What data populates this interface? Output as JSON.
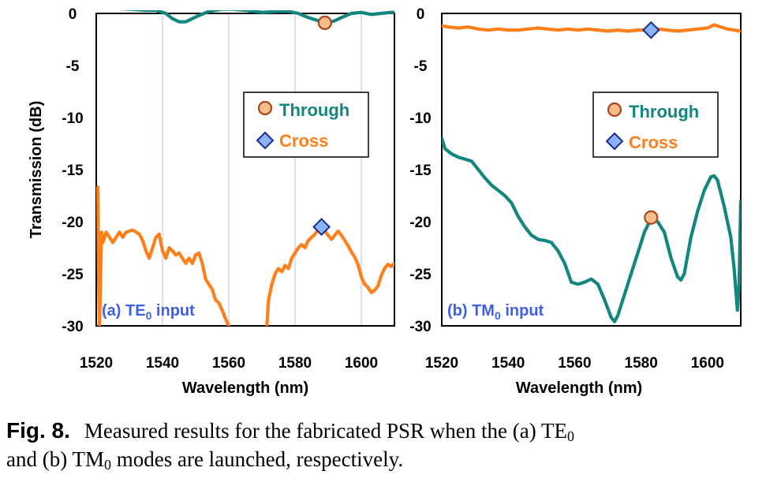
{
  "caption": {
    "label": "Fig. 8.",
    "text_1": "Measured results for the fabricated PSR when the (a) TE",
    "sub_1": "0",
    "text_2": "and (b) TM",
    "sub_2": "0",
    "text_3": " modes are launched, respectively."
  },
  "colors": {
    "through": "#138680",
    "cross": "#ff7f1a",
    "grid": "#c9cdf2",
    "panel_label": "#3f5fe8"
  },
  "chart_data": [
    {
      "type": "line",
      "panel_label_prefix": "(a) TE",
      "panel_label_sub": "0",
      "panel_label_suffix": " input",
      "xlabel": "Wavelength (nm)",
      "ylabel": "Transmission (dB)",
      "xlim": [
        1520,
        1610
      ],
      "ylim": [
        -30,
        0
      ],
      "x_ticks": [
        "1520",
        "1540",
        "1560",
        "1580",
        "1600"
      ],
      "y_ticks": [
        "0",
        "-5",
        "-10",
        "-15",
        "-20",
        "-25",
        "-30"
      ],
      "grid": "vertical",
      "legend": {
        "position": "right-middle",
        "entries": [
          "Through",
          "Cross"
        ]
      },
      "series": [
        {
          "name": "Through",
          "marker": "circle",
          "marker_point": [
            1589,
            -0.9
          ],
          "points": [
            [
              1520,
              0.6
            ],
            [
              1525,
              0.5
            ],
            [
              1530,
              0.4
            ],
            [
              1535,
              0.3
            ],
            [
              1538,
              0.3
            ],
            [
              1541,
              0
            ],
            [
              1543,
              -0.5
            ],
            [
              1545,
              -0.8
            ],
            [
              1547,
              -0.8
            ],
            [
              1549,
              -0.5
            ],
            [
              1551,
              -0.2
            ],
            [
              1554,
              0.2
            ],
            [
              1558,
              0.4
            ],
            [
              1561,
              0.4
            ],
            [
              1565,
              0.3
            ],
            [
              1570,
              0.1
            ],
            [
              1575,
              0.2
            ],
            [
              1578,
              0.2
            ],
            [
              1581,
              0
            ],
            [
              1584,
              -0.4
            ],
            [
              1587,
              -0.7
            ],
            [
              1590,
              -0.9
            ],
            [
              1592,
              -0.7
            ],
            [
              1594,
              -0.4
            ],
            [
              1597,
              0
            ],
            [
              1600,
              0.1
            ],
            [
              1603,
              -0.1
            ],
            [
              1606,
              0
            ],
            [
              1609,
              0.1
            ],
            [
              1610,
              0.1
            ]
          ]
        },
        {
          "name": "Cross",
          "marker": "diamond",
          "marker_point": [
            1588,
            -20.5
          ],
          "segments": [
            [
              [
                1520.5,
                -16.7
              ],
              [
                1520.7,
                -25
              ],
              [
                1521,
                -30
              ],
              [
                1521.3,
                -25
              ],
              [
                1521.6,
                -21
              ],
              [
                1522,
                -22
              ],
              [
                1523,
                -21
              ],
              [
                1524,
                -21.5
              ],
              [
                1525,
                -22
              ],
              [
                1527,
                -21
              ],
              [
                1528,
                -21.5
              ],
              [
                1529,
                -21
              ],
              [
                1531,
                -20.8
              ],
              [
                1533,
                -21.2
              ],
              [
                1534,
                -21.8
              ],
              [
                1535,
                -22.8
              ],
              [
                1536,
                -23.5
              ],
              [
                1537,
                -22.5
              ],
              [
                1538,
                -21.5
              ],
              [
                1539,
                -21.2
              ],
              [
                1540,
                -22.8
              ],
              [
                1541,
                -23.5
              ],
              [
                1542,
                -22.5
              ],
              [
                1543,
                -22.8
              ],
              [
                1544,
                -23.2
              ],
              [
                1545,
                -23
              ],
              [
                1546,
                -23.5
              ],
              [
                1547,
                -24
              ],
              [
                1548,
                -23.5
              ],
              [
                1549,
                -24
              ],
              [
                1550,
                -23.2
              ],
              [
                1551,
                -23
              ],
              [
                1552,
                -24
              ],
              [
                1553,
                -25.5
              ],
              [
                1554,
                -26
              ],
              [
                1555,
                -26.5
              ],
              [
                1556,
                -27.5
              ],
              [
                1557,
                -27.8
              ],
              [
                1558,
                -28.5
              ],
              [
                1559,
                -29.3
              ],
              [
                1560,
                -30
              ]
            ],
            [
              [
                1571.5,
                -30
              ],
              [
                1572,
                -27.5
              ],
              [
                1573,
                -26
              ],
              [
                1574,
                -25
              ],
              [
                1575,
                -24.5
              ],
              [
                1576,
                -24.8
              ],
              [
                1577,
                -24.2
              ],
              [
                1578,
                -24.5
              ],
              [
                1579,
                -23.5
              ],
              [
                1580,
                -23
              ],
              [
                1581,
                -22.5
              ],
              [
                1582,
                -22.2
              ],
              [
                1583,
                -22.5
              ],
              [
                1584,
                -21.8
              ],
              [
                1585,
                -21.5
              ],
              [
                1586,
                -21.2
              ],
              [
                1587,
                -20.8
              ],
              [
                1588,
                -20.6
              ],
              [
                1589,
                -20.9
              ],
              [
                1590,
                -21.3
              ],
              [
                1591,
                -21.7
              ],
              [
                1592,
                -21.3
              ],
              [
                1593,
                -20.9
              ],
              [
                1594,
                -21.3
              ],
              [
                1595,
                -21.8
              ],
              [
                1596,
                -22.3
              ],
              [
                1597,
                -22.9
              ],
              [
                1598,
                -23.4
              ],
              [
                1599,
                -24.1
              ],
              [
                1600,
                -25.3
              ],
              [
                1601,
                -26
              ],
              [
                1602,
                -26.3
              ],
              [
                1603,
                -26.8
              ],
              [
                1604,
                -26.6
              ],
              [
                1605,
                -26.2
              ],
              [
                1606,
                -25.2
              ],
              [
                1607,
                -24.5
              ],
              [
                1608,
                -24.1
              ],
              [
                1609,
                -24.3
              ],
              [
                1610,
                -24
              ]
            ]
          ]
        }
      ]
    },
    {
      "type": "line",
      "panel_label_prefix": "(b) TM",
      "panel_label_sub": "0",
      "panel_label_suffix": " input",
      "xlabel": "Wavelength (nm)",
      "ylabel": "",
      "xlim": [
        1520,
        1610
      ],
      "ylim": [
        -30,
        0
      ],
      "x_ticks": [
        "1520",
        "1540",
        "1560",
        "1580",
        "1600"
      ],
      "y_ticks": [
        "0",
        "-5",
        "-10",
        "-15",
        "-20",
        "-25",
        "-30"
      ],
      "grid": "none",
      "legend": {
        "position": "right-middle",
        "entries": [
          "Through",
          "Cross"
        ]
      },
      "series": [
        {
          "name": "Through",
          "marker": "circle",
          "marker_point": [
            1583,
            -19.6
          ],
          "points": [
            [
              1520,
              -12
            ],
            [
              1521,
              -13
            ],
            [
              1523,
              -13.5
            ],
            [
              1525,
              -13.8
            ],
            [
              1527,
              -14
            ],
            [
              1529,
              -14.2
            ],
            [
              1531,
              -15
            ],
            [
              1533,
              -15.8
            ],
            [
              1535,
              -16.5
            ],
            [
              1537,
              -17
            ],
            [
              1539,
              -17.5
            ],
            [
              1541,
              -18.2
            ],
            [
              1543,
              -19.5
            ],
            [
              1545,
              -20.5
            ],
            [
              1547,
              -21.3
            ],
            [
              1549,
              -21.7
            ],
            [
              1551,
              -21.8
            ],
            [
              1553,
              -22
            ],
            [
              1555,
              -22.8
            ],
            [
              1557,
              -24
            ],
            [
              1559,
              -25.8
            ],
            [
              1561,
              -26
            ],
            [
              1563,
              -25.8
            ],
            [
              1565,
              -25.5
            ],
            [
              1567,
              -26
            ],
            [
              1569,
              -27.5
            ],
            [
              1571,
              -29.2
            ],
            [
              1572,
              -29.6
            ],
            [
              1573,
              -29
            ],
            [
              1575,
              -27
            ],
            [
              1577,
              -25
            ],
            [
              1579,
              -23
            ],
            [
              1581,
              -21
            ],
            [
              1583,
              -19.7
            ],
            [
              1585,
              -20
            ],
            [
              1587,
              -21
            ],
            [
              1589,
              -23.5
            ],
            [
              1591,
              -25.3
            ],
            [
              1592,
              -25.6
            ],
            [
              1593,
              -25
            ],
            [
              1595,
              -21.5
            ],
            [
              1597,
              -19
            ],
            [
              1599,
              -17
            ],
            [
              1601,
              -15.7
            ],
            [
              1602,
              -15.6
            ],
            [
              1603,
              -16
            ],
            [
              1605,
              -18.5
            ],
            [
              1607,
              -21.5
            ],
            [
              1608,
              -24.5
            ],
            [
              1609,
              -28.5
            ],
            [
              1609.5,
              -26
            ],
            [
              1610,
              -18
            ]
          ]
        },
        {
          "name": "Cross",
          "marker": "diamond",
          "marker_point": [
            1583,
            -1.6
          ],
          "points": [
            [
              1520,
              -1.2
            ],
            [
              1522,
              -1.3
            ],
            [
              1525,
              -1.4
            ],
            [
              1528,
              -1.3
            ],
            [
              1531,
              -1.5
            ],
            [
              1534,
              -1.6
            ],
            [
              1537,
              -1.5
            ],
            [
              1540,
              -1.6
            ],
            [
              1543,
              -1.6
            ],
            [
              1546,
              -1.5
            ],
            [
              1549,
              -1.4
            ],
            [
              1552,
              -1.5
            ],
            [
              1555,
              -1.6
            ],
            [
              1558,
              -1.5
            ],
            [
              1561,
              -1.6
            ],
            [
              1564,
              -1.5
            ],
            [
              1567,
              -1.6
            ],
            [
              1570,
              -1.7
            ],
            [
              1573,
              -1.6
            ],
            [
              1576,
              -1.7
            ],
            [
              1579,
              -1.6
            ],
            [
              1582,
              -1.6
            ],
            [
              1585,
              -1.5
            ],
            [
              1588,
              -1.6
            ],
            [
              1591,
              -1.7
            ],
            [
              1594,
              -1.6
            ],
            [
              1597,
              -1.5
            ],
            [
              1600,
              -1.4
            ],
            [
              1602,
              -1.1
            ],
            [
              1604,
              -1.3
            ],
            [
              1606,
              -1.5
            ],
            [
              1608,
              -1.6
            ],
            [
              1610,
              -1.7
            ]
          ]
        }
      ]
    }
  ]
}
